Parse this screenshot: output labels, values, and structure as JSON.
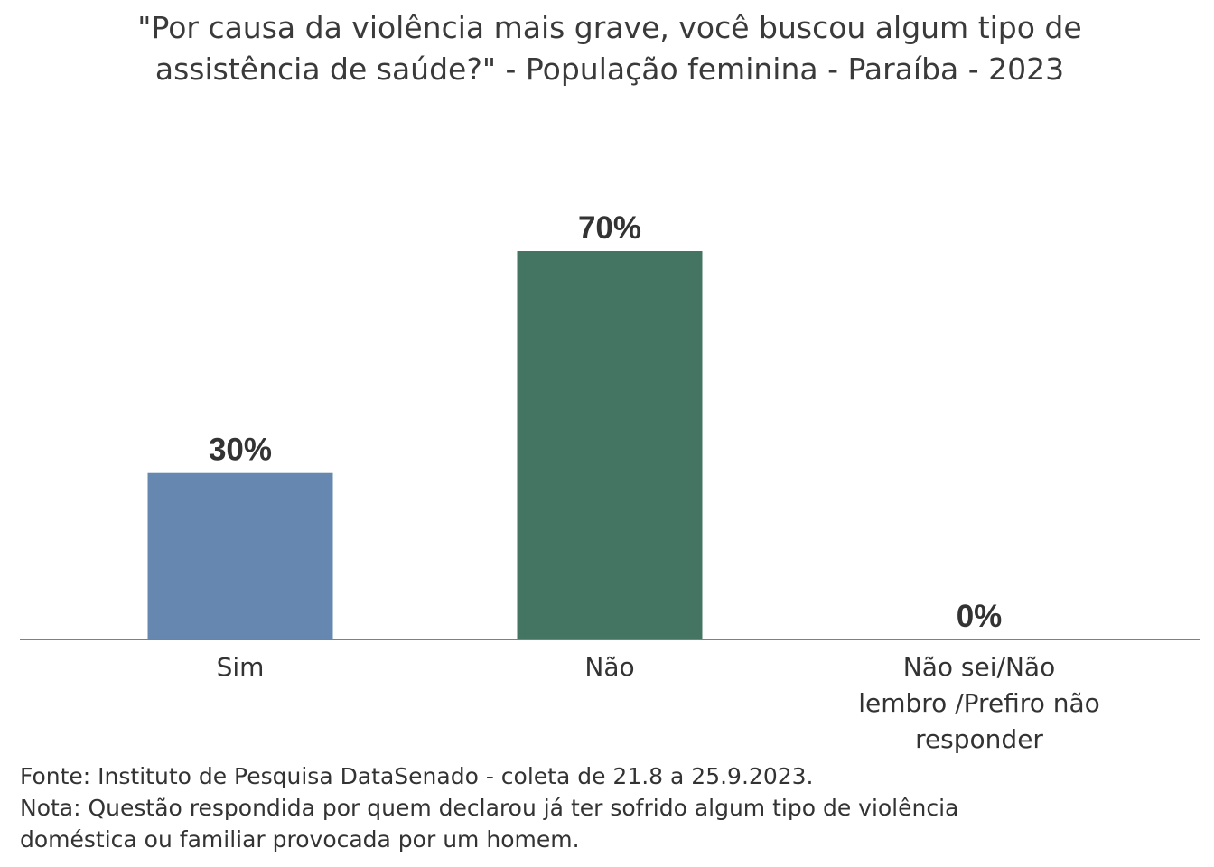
{
  "chart_data": {
    "type": "bar",
    "title": "\"Por causa da violência mais grave, você buscou algum tipo de assistência de saúde?\" - População feminina - Paraíba - 2023",
    "categories": [
      "Sim",
      "Não",
      "Não sei/Não lembro /Prefiro não responder"
    ],
    "category_lines": [
      [
        "Sim"
      ],
      [
        "Não"
      ],
      [
        "Não sei/Não",
        "lembro /Prefiro não",
        "responder"
      ]
    ],
    "values": [
      30,
      70,
      0
    ],
    "value_labels": [
      "30%",
      "70%",
      "0%"
    ],
    "colors": [
      "#6688b0",
      "#447563",
      "#447563"
    ],
    "unit": "%",
    "ylim": [
      0,
      70
    ],
    "xlabel": "",
    "ylabel": "",
    "grid": false,
    "legend": "none"
  },
  "notes": {
    "source": "Fonte: Instituto de Pesquisa DataSenado - coleta de 21.8 a 25.9.2023.",
    "note_line1": "Nota: Questão respondida por quem declarou já ter sofrido algum tipo de violência",
    "note_line2": "doméstica ou familiar provocada por um homem."
  }
}
